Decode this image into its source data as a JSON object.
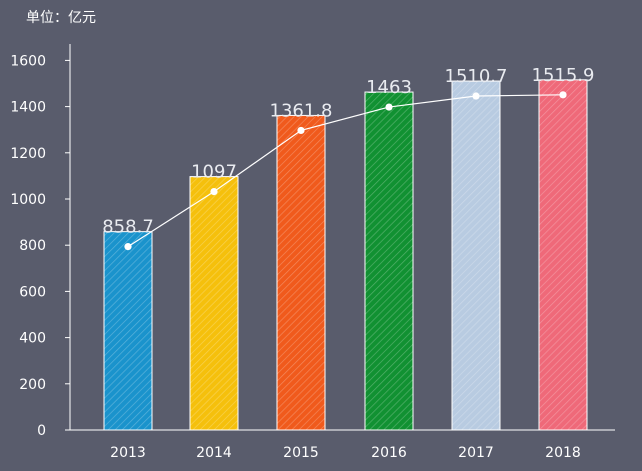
{
  "chart_data": {
    "type": "bar",
    "unit_label": "单位：亿元",
    "categories": [
      "2013",
      "2014",
      "2015",
      "2016",
      "2017",
      "2018"
    ],
    "values": [
      858.7,
      1097,
      1361.8,
      1463,
      1510.7,
      1515.9
    ],
    "value_labels": [
      "858.7",
      "1097",
      "1361.8",
      "1463",
      "1510.7",
      "1515.9"
    ],
    "y_ticks": [
      0,
      200,
      400,
      600,
      800,
      1000,
      1200,
      1400,
      1600
    ],
    "ylim": [
      0,
      1650
    ],
    "bar_colors": [
      "#1a93cc",
      "#f5c00c",
      "#f05a1c",
      "#119132",
      "#b8cbe1",
      "#ef6979"
    ],
    "overlay": {
      "type": "line",
      "name": "trend",
      "values": [
        858.7,
        1097,
        1361.8,
        1463,
        1510.7,
        1515.9
      ]
    },
    "title": "",
    "xlabel": "",
    "ylabel": ""
  }
}
